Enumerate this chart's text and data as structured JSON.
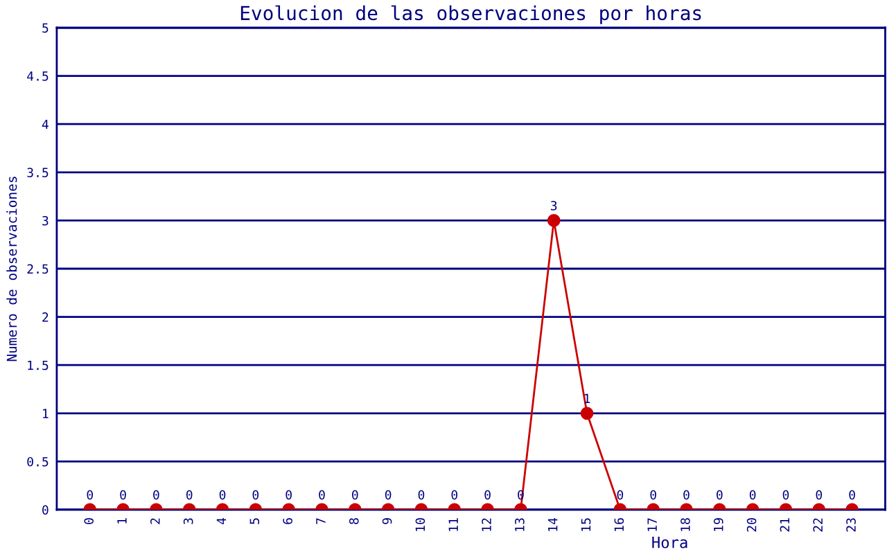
{
  "chart_data": {
    "type": "line",
    "title": "Evolucion de las observaciones por horas",
    "xlabel": "Hora",
    "ylabel": "Numero de observaciones",
    "categories": [
      "0",
      "1",
      "2",
      "3",
      "4",
      "5",
      "6",
      "7",
      "8",
      "9",
      "10",
      "11",
      "12",
      "13",
      "14",
      "15",
      "16",
      "17",
      "18",
      "19",
      "20",
      "21",
      "22",
      "23"
    ],
    "series": [
      {
        "color": "#cc0000",
        "values": [
          0,
          0,
          0,
          0,
          0,
          0,
          0,
          0,
          0,
          0,
          0,
          0,
          0,
          0,
          3,
          1,
          0,
          0,
          0,
          0,
          0,
          0,
          0,
          0
        ]
      }
    ],
    "ylim": [
      0,
      5
    ],
    "yticks": [
      0,
      0.5,
      1,
      1.5,
      2,
      2.5,
      3,
      3.5,
      4,
      4.5,
      5
    ],
    "grid": "y",
    "legend": false,
    "marker": "circle",
    "line_style": "solid",
    "data_labels": true
  }
}
